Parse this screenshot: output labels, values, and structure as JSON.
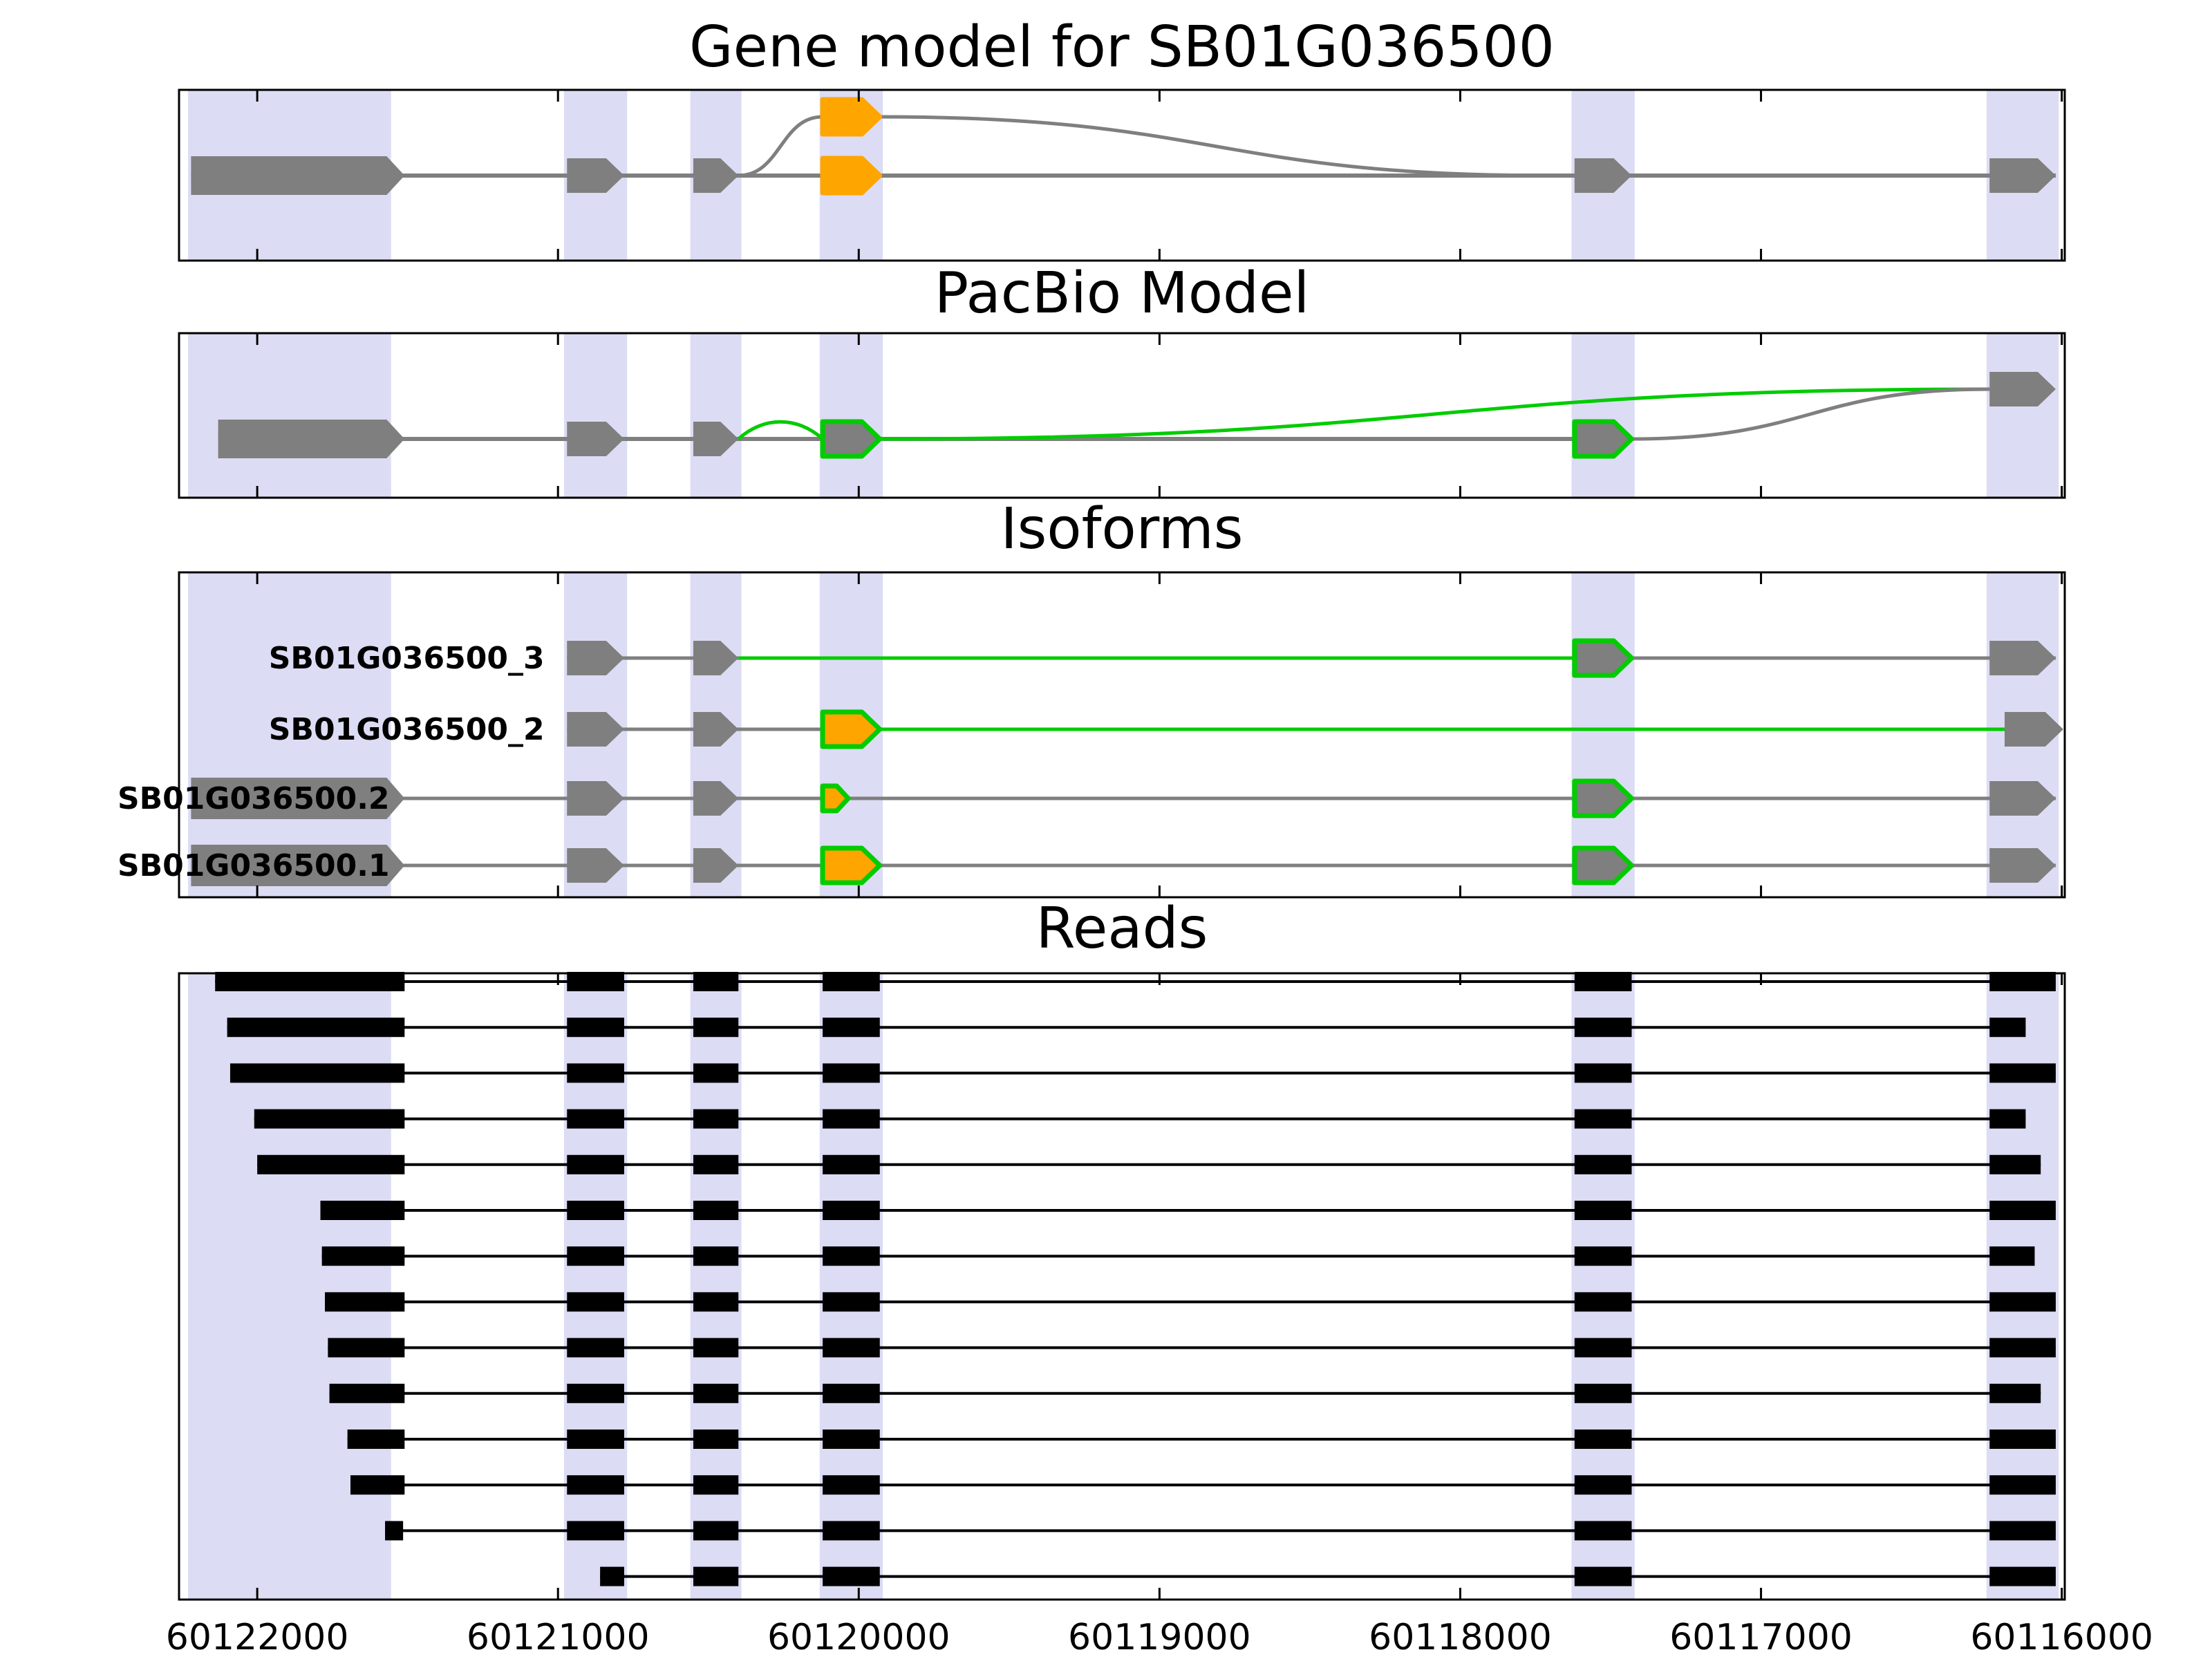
{
  "chart_data": {
    "type": "genomic-tracks",
    "gene_id": "SB01G036500",
    "titles": {
      "gene_model": "Gene model for SB01G036500",
      "pacbio": "PacBio Model",
      "isoforms": "Isoforms",
      "reads": "Reads"
    },
    "x_axis": {
      "xlim": [
        60122260,
        60115990
      ],
      "inverted": true,
      "tick_values": [
        60122000,
        60121000,
        60120000,
        60119000,
        60118000,
        60117000,
        60116000
      ],
      "tick_labels": [
        "60122000",
        "60121000",
        "60120000",
        "60119000",
        "60118000",
        "60117000",
        "60116000"
      ]
    },
    "colors": {
      "band": "#dcdcf4",
      "gray": "#7f7f7f",
      "orange": "#ffa500",
      "green": "#00cc00",
      "black": "#000000"
    },
    "highlight_bands": [
      [
        60122230,
        60121555
      ],
      [
        60120980,
        60120770
      ],
      [
        60120560,
        60120390
      ],
      [
        60120130,
        60119920
      ],
      [
        60117630,
        60117420
      ],
      [
        60116250,
        60116010
      ]
    ],
    "gene_model": {
      "line": [
        60122220,
        60116020
      ],
      "exons": [
        {
          "x": [
            60122220,
            60121510
          ],
          "fill": "gray",
          "h": 56
        },
        {
          "x": [
            60120970,
            60120780
          ],
          "fill": "gray"
        },
        {
          "x": [
            60120550,
            60120400
          ],
          "fill": "gray"
        },
        {
          "x": [
            60120120,
            60119930
          ],
          "fill": "orange",
          "stroke": "orange"
        },
        {
          "x": [
            60117620,
            60117430
          ],
          "fill": "gray"
        },
        {
          "x": [
            60116240,
            60116020
          ],
          "fill": "gray"
        }
      ],
      "alt_exon": {
        "x": [
          60120120,
          60119930
        ],
        "fill": "orange",
        "stroke": "orange",
        "dy": -85
      },
      "arcs": [
        {
          "x1": 60120400,
          "y1": 0,
          "x2": 60120120,
          "y2": -85,
          "color": "gray"
        },
        {
          "x1": 60119930,
          "y1": -85,
          "x2": 60117700,
          "y2": 0,
          "color": "gray"
        }
      ]
    },
    "pacbio_model": {
      "line": [
        60122130,
        60117430
      ],
      "exons": [
        {
          "x": [
            60122130,
            60121510
          ],
          "fill": "gray",
          "h": 56
        },
        {
          "x": [
            60120970,
            60120780
          ],
          "fill": "gray"
        },
        {
          "x": [
            60120550,
            60120400
          ],
          "fill": "gray"
        },
        {
          "x": [
            60120120,
            60119930
          ],
          "fill": "gray",
          "stroke": "green"
        },
        {
          "x": [
            60117620,
            60117430
          ],
          "fill": "gray",
          "stroke": "green"
        }
      ],
      "elevated_exon": {
        "x": [
          60116240,
          60116020
        ],
        "fill": "gray",
        "dy": -72
      },
      "green_bump": {
        "x1": 60120400,
        "x2": 60120120,
        "rise": 33
      },
      "green_long_arc": {
        "x1": 60119930,
        "y1": 0,
        "x2": 60116240,
        "y2": -72
      },
      "gray_arc": {
        "x1": 60117430,
        "y1": 0,
        "x2": 60116240,
        "y2": -72
      }
    },
    "isoforms": [
      {
        "label": "SB01G036500_3",
        "label_anchor": 60121045,
        "lines": [
          {
            "x": [
              60120970,
              60116020
            ],
            "color": "gray"
          },
          {
            "x": [
              60120400,
              60117620
            ],
            "color": "green"
          }
        ],
        "exons": [
          {
            "x": [
              60120970,
              60120780
            ],
            "fill": "gray"
          },
          {
            "x": [
              60120550,
              60120400
            ],
            "fill": "gray"
          },
          {
            "x": [
              60117620,
              60117430
            ],
            "fill": "gray",
            "stroke": "green"
          },
          {
            "x": [
              60116240,
              60116020
            ],
            "fill": "gray"
          }
        ]
      },
      {
        "label": "SB01G036500_2",
        "label_anchor": 60121045,
        "lines": [
          {
            "x": [
              60120970,
              60120120
            ],
            "color": "gray"
          },
          {
            "x": [
              60119930,
              60116190
            ],
            "color": "green"
          }
        ],
        "exons": [
          {
            "x": [
              60120970,
              60120780
            ],
            "fill": "gray"
          },
          {
            "x": [
              60120550,
              60120400
            ],
            "fill": "gray"
          },
          {
            "x": [
              60120120,
              60119930
            ],
            "fill": "orange",
            "stroke": "green"
          },
          {
            "x": [
              60116190,
              60115995
            ],
            "fill": "gray"
          }
        ]
      },
      {
        "label": "SB01G036500.2",
        "label_anchor": 60121560,
        "lines": [
          {
            "x": [
              60122220,
              60116020
            ],
            "color": "gray"
          }
        ],
        "exons": [
          {
            "x": [
              60122220,
              60121510
            ],
            "fill": "gray",
            "h": 60
          },
          {
            "x": [
              60120970,
              60120780
            ],
            "fill": "gray"
          },
          {
            "x": [
              60120550,
              60120400
            ],
            "fill": "gray"
          },
          {
            "x": [
              60120120,
              60120035
            ],
            "fill": "orange",
            "stroke": "green",
            "h": 36
          },
          {
            "x": [
              60117620,
              60117430
            ],
            "fill": "gray",
            "stroke": "green"
          },
          {
            "x": [
              60116240,
              60116020
            ],
            "fill": "gray"
          }
        ]
      },
      {
        "label": "SB01G036500.1",
        "label_anchor": 60121560,
        "lines": [
          {
            "x": [
              60122220,
              60116020
            ],
            "color": "gray"
          }
        ],
        "exons": [
          {
            "x": [
              60122220,
              60121510
            ],
            "fill": "gray",
            "h": 60
          },
          {
            "x": [
              60120970,
              60120780
            ],
            "fill": "gray"
          },
          {
            "x": [
              60120550,
              60120400
            ],
            "fill": "gray"
          },
          {
            "x": [
              60120120,
              60119930
            ],
            "fill": "orange",
            "stroke": "green"
          },
          {
            "x": [
              60117620,
              60117430
            ],
            "fill": "gray",
            "stroke": "green"
          },
          {
            "x": [
              60116240,
              60116020
            ],
            "fill": "gray"
          }
        ]
      }
    ],
    "reads": [
      {
        "blocks": [
          [
            60122140,
            60121510
          ],
          [
            60120970,
            60120780
          ],
          [
            60120550,
            60120400
          ],
          [
            60120120,
            60119930
          ],
          [
            60117620,
            60117430
          ],
          [
            60116240,
            60116020
          ]
        ]
      },
      {
        "blocks": [
          [
            60122100,
            60121510
          ],
          [
            60120970,
            60120780
          ],
          [
            60120550,
            60120400
          ],
          [
            60120120,
            60119930
          ],
          [
            60117620,
            60117430
          ],
          [
            60116240,
            60116120
          ]
        ]
      },
      {
        "blocks": [
          [
            60122090,
            60121510
          ],
          [
            60120970,
            60120780
          ],
          [
            60120550,
            60120400
          ],
          [
            60120120,
            60119930
          ],
          [
            60117620,
            60117430
          ],
          [
            60116240,
            60116020
          ]
        ]
      },
      {
        "blocks": [
          [
            60122010,
            60121510
          ],
          [
            60120970,
            60120780
          ],
          [
            60120550,
            60120400
          ],
          [
            60120120,
            60119930
          ],
          [
            60117620,
            60117430
          ],
          [
            60116240,
            60116120
          ]
        ]
      },
      {
        "blocks": [
          [
            60122000,
            60121510
          ],
          [
            60120970,
            60120780
          ],
          [
            60120550,
            60120400
          ],
          [
            60120120,
            60119930
          ],
          [
            60117620,
            60117430
          ],
          [
            60116240,
            60116070
          ]
        ]
      },
      {
        "blocks": [
          [
            60121790,
            60121510
          ],
          [
            60120970,
            60120780
          ],
          [
            60120550,
            60120400
          ],
          [
            60120120,
            60119930
          ],
          [
            60117620,
            60117430
          ],
          [
            60116240,
            60116020
          ]
        ]
      },
      {
        "blocks": [
          [
            60121785,
            60121510
          ],
          [
            60120970,
            60120780
          ],
          [
            60120550,
            60120400
          ],
          [
            60120120,
            60119930
          ],
          [
            60117620,
            60117430
          ],
          [
            60116240,
            60116090
          ]
        ]
      },
      {
        "blocks": [
          [
            60121775,
            60121510
          ],
          [
            60120970,
            60120780
          ],
          [
            60120550,
            60120400
          ],
          [
            60120120,
            60119930
          ],
          [
            60117620,
            60117430
          ],
          [
            60116240,
            60116020
          ]
        ]
      },
      {
        "blocks": [
          [
            60121765,
            60121510
          ],
          [
            60120970,
            60120780
          ],
          [
            60120550,
            60120400
          ],
          [
            60120120,
            60119930
          ],
          [
            60117620,
            60117430
          ],
          [
            60116240,
            60116020
          ]
        ]
      },
      {
        "blocks": [
          [
            60121760,
            60121510
          ],
          [
            60120970,
            60120780
          ],
          [
            60120550,
            60120400
          ],
          [
            60120120,
            60119930
          ],
          [
            60117620,
            60117430
          ],
          [
            60116240,
            60116070
          ]
        ]
      },
      {
        "blocks": [
          [
            60121700,
            60121510
          ],
          [
            60120970,
            60120780
          ],
          [
            60120550,
            60120400
          ],
          [
            60120120,
            60119930
          ],
          [
            60117620,
            60117430
          ],
          [
            60116240,
            60116020
          ]
        ]
      },
      {
        "blocks": [
          [
            60121690,
            60121510
          ],
          [
            60120970,
            60120780
          ],
          [
            60120550,
            60120400
          ],
          [
            60120120,
            60119930
          ],
          [
            60117620,
            60117430
          ],
          [
            60116240,
            60116020
          ]
        ]
      },
      {
        "blocks": [
          [
            60121575,
            60121515
          ],
          [
            60120970,
            60120780
          ],
          [
            60120550,
            60120400
          ],
          [
            60120120,
            60119930
          ],
          [
            60117620,
            60117430
          ],
          [
            60116240,
            60116020
          ]
        ]
      },
      {
        "blocks": [
          [
            60120860,
            60120780
          ],
          [
            60120550,
            60120400
          ],
          [
            60120120,
            60119930
          ],
          [
            60117620,
            60117430
          ],
          [
            60116240,
            60116020
          ]
        ]
      }
    ]
  }
}
